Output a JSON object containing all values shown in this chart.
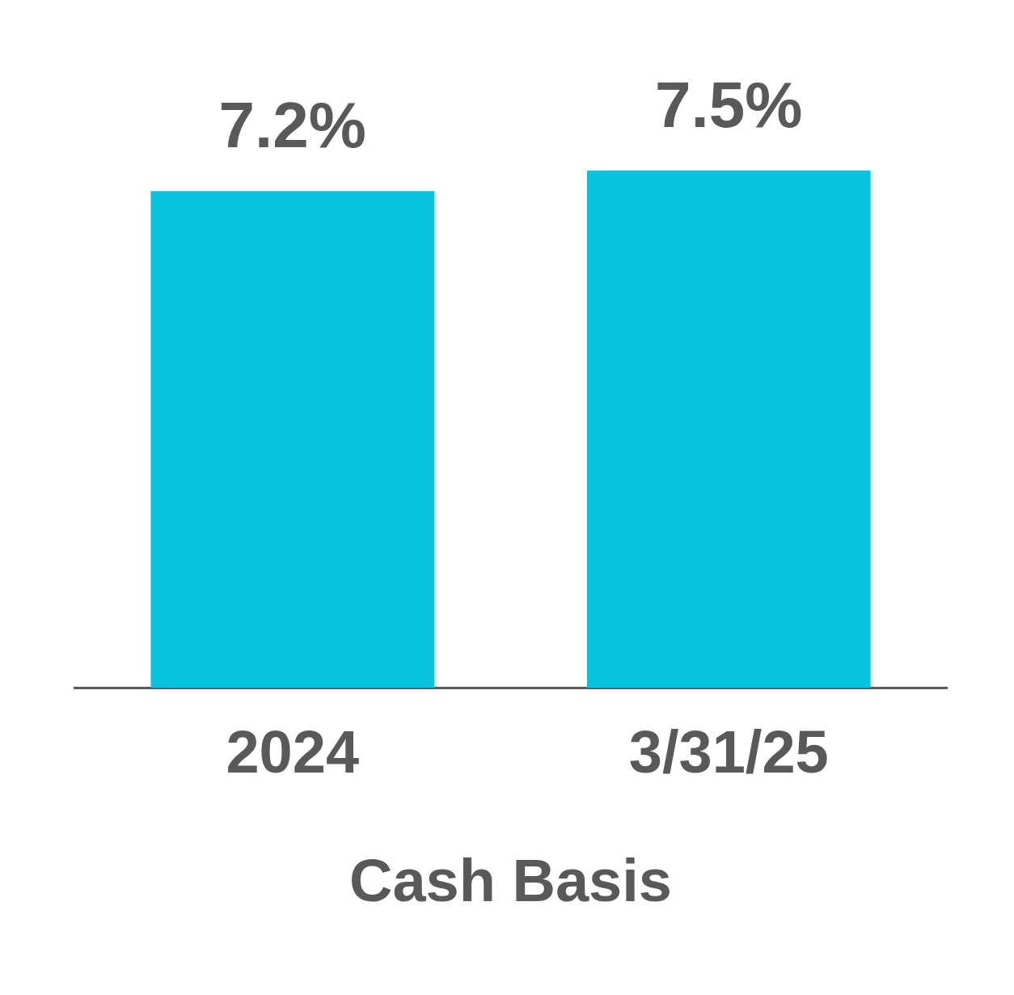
{
  "chart_data": {
    "type": "bar",
    "xlabel": "Cash Basis",
    "categories": [
      "2024",
      "3/31/25"
    ],
    "values": [
      7.2,
      7.5
    ],
    "value_labels": [
      "7.2%",
      "7.5%"
    ],
    "color": "#07c3de",
    "grid": false,
    "legend": false
  }
}
